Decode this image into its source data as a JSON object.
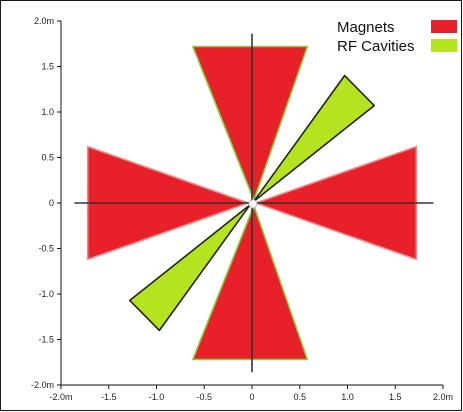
{
  "chart_data": {
    "type": "polygon",
    "xlim": [
      -2.0,
      2.0
    ],
    "ylim": [
      -2.0,
      2.0
    ],
    "x_ticks": [
      {
        "value": -2.0,
        "label": "-2.0m"
      },
      {
        "value": -1.5,
        "label": "-1.5"
      },
      {
        "value": -1.0,
        "label": "-1.0"
      },
      {
        "value": -0.5,
        "label": "-0.5"
      },
      {
        "value": 0,
        "label": "0"
      },
      {
        "value": 0.5,
        "label": "0.5"
      },
      {
        "value": 1.0,
        "label": "1.0"
      },
      {
        "value": 1.5,
        "label": "1.5"
      },
      {
        "value": 2.0,
        "label": "2.0m"
      }
    ],
    "y_ticks": [
      {
        "value": 2.0,
        "label": "2.0m"
      },
      {
        "value": 1.5,
        "label": "1.5"
      },
      {
        "value": 1.0,
        "label": "1.0"
      },
      {
        "value": 0.5,
        "label": "0.5"
      },
      {
        "value": 0,
        "label": "0"
      },
      {
        "value": -0.5,
        "label": "-0.5"
      },
      {
        "value": -1.0,
        "label": "-1.0"
      },
      {
        "value": -1.5,
        "label": "-1.5"
      },
      {
        "value": -2.0,
        "label": "-2.0m"
      }
    ],
    "legend_position": "top-right",
    "series": [
      {
        "name": "Magnets",
        "color": "#e8202a",
        "shapes": [
          {
            "points": [
              [
                -0.62,
                1.72
              ],
              [
                0.58,
                1.72
              ],
              [
                0.02,
                0.03
              ]
            ],
            "edge": "#7fd63a"
          },
          {
            "points": [
              [
                -0.62,
                -1.72
              ],
              [
                0.58,
                -1.72
              ],
              [
                0.02,
                -0.03
              ]
            ],
            "edge": "#7fd63a"
          },
          {
            "points": [
              [
                -1.72,
                0.62
              ],
              [
                -1.72,
                -0.62
              ],
              [
                -0.04,
                0.0
              ]
            ],
            "edge": "#f08a8a"
          },
          {
            "points": [
              [
                1.72,
                0.62
              ],
              [
                1.72,
                -0.62
              ],
              [
                0.04,
                0.0
              ]
            ],
            "edge": "#f08a8a"
          }
        ]
      },
      {
        "name": "RF Cavities",
        "color": "#b5e320",
        "shapes": [
          {
            "points": [
              [
                0.97,
                1.4
              ],
              [
                1.28,
                1.07
              ],
              [
                0.02,
                0.02
              ]
            ],
            "edge": "#222222"
          },
          {
            "points": [
              [
                -1.28,
                -1.07
              ],
              [
                -0.97,
                -1.4
              ],
              [
                -0.02,
                -0.02
              ]
            ],
            "edge": "#222222"
          }
        ]
      }
    ]
  }
}
